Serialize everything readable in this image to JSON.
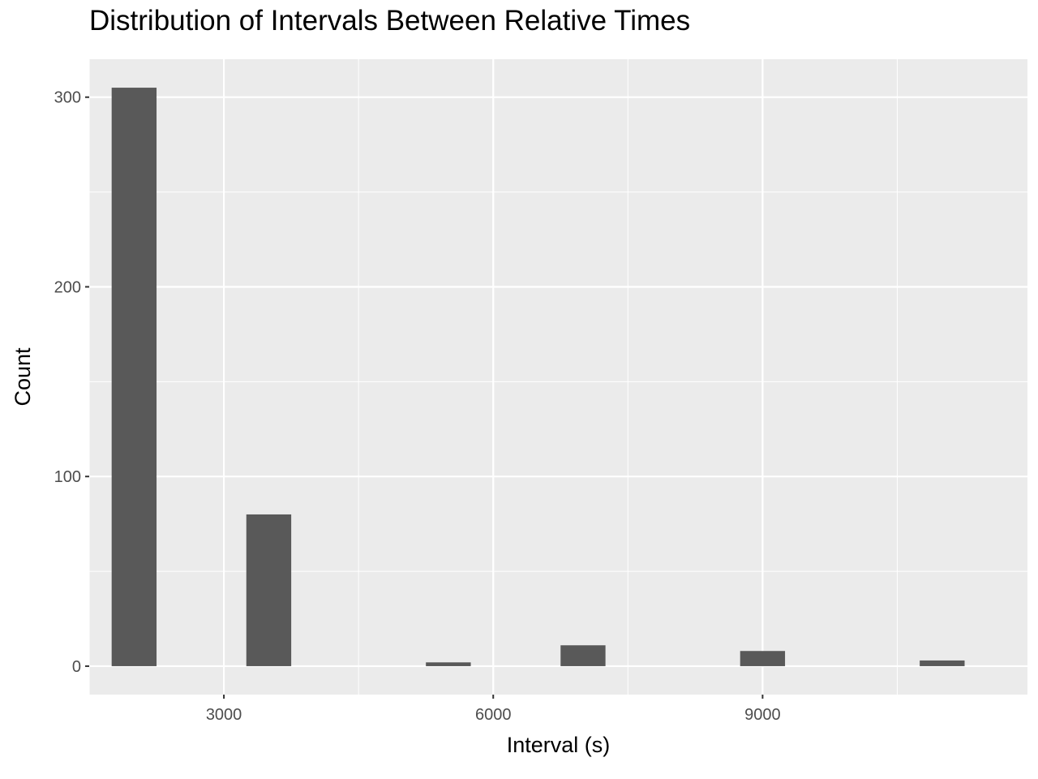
{
  "chart_data": {
    "type": "bar",
    "title": "Distribution of Intervals Between Relative Times",
    "xlabel": "Interval (s)",
    "ylabel": "Count",
    "xlim": [
      1500,
      11950
    ],
    "ylim": [
      -15,
      320
    ],
    "x_ticks": [
      3000,
      6000,
      9000
    ],
    "x_minor_ticks": [
      1500,
      4500,
      7500,
      10500
    ],
    "y_ticks": [
      0,
      100,
      200,
      300
    ],
    "y_minor_ticks": [
      50,
      150,
      250
    ],
    "bin_width": 500,
    "bins": [
      {
        "center": 2000,
        "count": 305
      },
      {
        "center": 3500,
        "count": 80
      },
      {
        "center": 5500,
        "count": 2
      },
      {
        "center": 7000,
        "count": 11
      },
      {
        "center": 9000,
        "count": 8
      },
      {
        "center": 11000,
        "count": 3
      }
    ],
    "colors": {
      "panel_background": "#ebebeb",
      "grid": "#ffffff",
      "bar_fill": "#595959",
      "tick_text": "#4d4d4d"
    },
    "grid": true,
    "legend": "none"
  }
}
